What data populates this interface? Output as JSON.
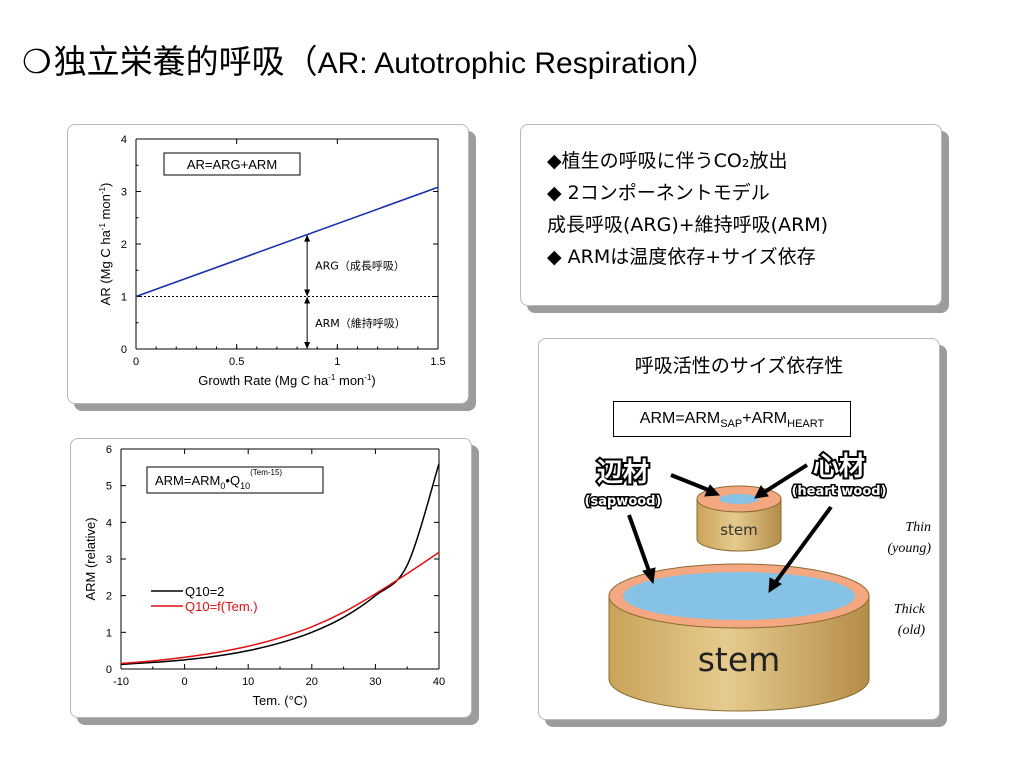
{
  "title": {
    "bullet": "❍",
    "jp": "独立栄養的呼吸（",
    "en": "AR: Autotrophic Respiration",
    "close": "）"
  },
  "chart_data": [
    {
      "type": "line",
      "title": "",
      "xlabel": "Growth Rate (Mg C ha-1 mon-1)",
      "ylabel": "AR (Mg C ha-1 mon-1)",
      "xlim": [
        0,
        1.5
      ],
      "ylim": [
        0,
        4
      ],
      "xticks": [
        "0",
        "0.5",
        "1",
        "1.5"
      ],
      "yticks": [
        "0",
        "1",
        "2",
        "3",
        "4"
      ],
      "series": [
        {
          "name": "",
          "color": "#1a2fa8",
          "x": [
            0,
            1.5
          ],
          "y": [
            1.0,
            3.08
          ]
        }
      ],
      "reference_line": {
        "y": 1,
        "style": "dotted"
      },
      "annotations": {
        "equation": "AR=ARG+ARM",
        "arg": "ARG（成長呼吸）",
        "arm": "ARM（維持呼吸）",
        "arrow_x": 0.85
      }
    },
    {
      "type": "line",
      "title": "",
      "xlabel": "Tem. (°C)",
      "ylabel": "ARM (relative)",
      "xlim": [
        -10,
        40
      ],
      "ylim": [
        0,
        6
      ],
      "xticks": [
        "-10",
        "0",
        "10",
        "20",
        "30",
        "40"
      ],
      "yticks": [
        "0",
        "1",
        "2",
        "3",
        "4",
        "5",
        "6"
      ],
      "series": [
        {
          "name": "Q10=2",
          "color": "#000000",
          "x": [
            -10,
            -5,
            0,
            5,
            10,
            15,
            20,
            25,
            30,
            35,
            40
          ],
          "y": [
            0.125,
            0.18,
            0.25,
            0.35,
            0.5,
            0.71,
            1.0,
            1.41,
            2.0,
            2.83,
            5.6
          ]
        },
        {
          "name": "Q10=f(Tem.)",
          "color": "#e01010",
          "x": [
            -10,
            -5,
            0,
            5,
            10,
            15,
            20,
            25,
            30,
            35,
            40
          ],
          "y": [
            0.15,
            0.22,
            0.32,
            0.45,
            0.62,
            0.85,
            1.15,
            1.55,
            2.05,
            2.6,
            3.18
          ]
        }
      ],
      "annotations": {
        "eq_base": "ARM=ARM",
        "eq_sub0": "0",
        "eq_mid": "•Q",
        "eq_sub10": "10",
        "eq_sup": "(Tem-15)"
      }
    }
  ],
  "bullets": [
    "◆植生の呼吸に伴うCO₂放出",
    "◆ 2コンポーネントモデル",
    "成長呼吸(ARG)+維持呼吸(ARM)",
    "◆ ARMは温度依存+サイズ依存"
  ],
  "size_panel": {
    "title": "呼吸活性のサイズ依存性",
    "eq_main": "ARM=ARM",
    "eq_sub1": "SAP",
    "eq_plus": "+ARM",
    "eq_sub2": "HEART",
    "sapwood_jp": "辺材",
    "sapwood_en": "(sapwood)",
    "heartwood_jp": "心材",
    "heartwood_en": "(heart wood)",
    "small_stem": "stem",
    "big_stem": "stem",
    "thin1": "Thin",
    "thin2": "(young)",
    "thick1": "Thick",
    "thick2": "(old)",
    "colors": {
      "bark": "#f4a882",
      "heart": "#86c2e6",
      "wood": "#d9b877",
      "wood_dark": "#a88442"
    }
  }
}
